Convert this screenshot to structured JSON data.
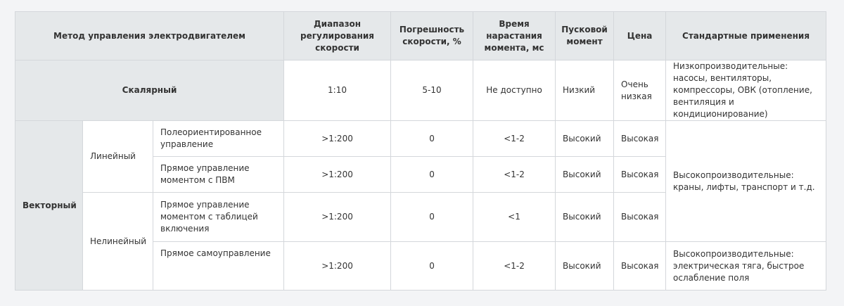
{
  "headers": {
    "method": "Метод управления электродвигателем",
    "speed_range": "Диапазон регулирования скорости",
    "speed_error": "Погрешность скорости, %",
    "torque_rise": "Время нарастания момента, мс",
    "starting_torque": "Пусковой момент",
    "price": "Цена",
    "applications": "Стандартные применения"
  },
  "scalar": {
    "method": "Скалярный",
    "speed_range": "1:10",
    "speed_error": "5-10",
    "torque_rise": "Не доступно",
    "starting_torque": "Низкий",
    "price": "Очень низкая",
    "applications": "Низкопроизводительные: насосы, вентиляторы, компрессоры, ОВК (отопление, вентиляция и кондиционирование)"
  },
  "vector": {
    "method": "Векторный",
    "linear": {
      "label": "Линейный",
      "rows": [
        {
          "method": "Полеориентированное управление",
          "speed_range": ">1:200",
          "speed_error": "0",
          "torque_rise": "<1-2",
          "starting_torque": "Высокий",
          "price": "Высокая"
        },
        {
          "method": "Прямое управление моментом с ПВМ",
          "speed_range": ">1:200",
          "speed_error": "0",
          "torque_rise": "<1-2",
          "starting_torque": "Высокий",
          "price": "Высокая"
        }
      ]
    },
    "nonlinear": {
      "label": "Нелинейный",
      "rows": [
        {
          "method": "Прямое управление моментом с таблицей включения",
          "speed_range": ">1:200",
          "speed_error": "0",
          "torque_rise": "<1",
          "starting_torque": "Высокий",
          "price": "Высокая"
        },
        {
          "method": "Прямое самоуправление",
          "speed_range": ">1:200",
          "speed_error": "0",
          "torque_rise": "<1-2",
          "starting_torque": "Высокий",
          "price": "Высокая"
        }
      ]
    },
    "applications_high": "Высокопроизводительные: краны, лифты, транспорт и т.д.",
    "applications_traction": "Высокопроизводительные: электрическая тяга, быстрое ослабление поля"
  }
}
